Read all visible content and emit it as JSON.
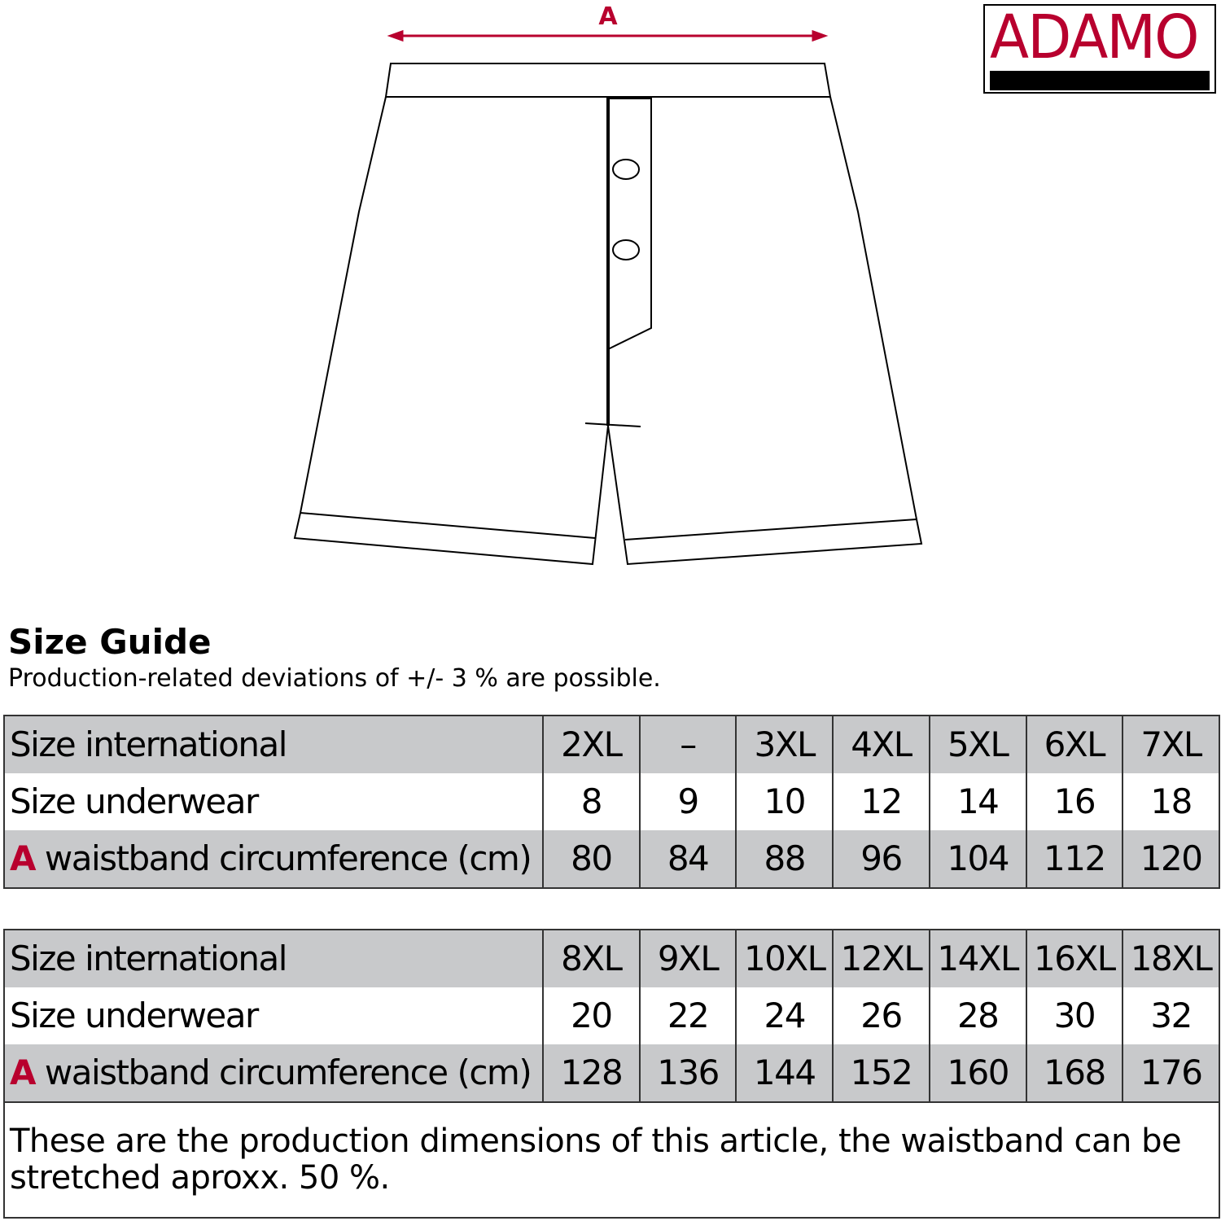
{
  "brand": {
    "logo": "ADAMO",
    "color": "#b8002e"
  },
  "diagram": {
    "measure_label": "A"
  },
  "guide": {
    "title": "Size Guide",
    "subtitle": "Production-related deviations of +/- 3 % are possible."
  },
  "row_labels": {
    "intl": "Size international",
    "underwear": "Size underwear",
    "a": "A",
    "waist": "waistband circumference (cm)"
  },
  "table1": {
    "intl": [
      "2XL",
      "–",
      "3XL",
      "4XL",
      "5XL",
      "6XL",
      "7XL"
    ],
    "underwear": [
      "8",
      "9",
      "10",
      "12",
      "14",
      "16",
      "18"
    ],
    "waist": [
      "80",
      "84",
      "88",
      "96",
      "104",
      "112",
      "120"
    ]
  },
  "table2": {
    "intl": [
      "8XL",
      "9XL",
      "10XL",
      "12XL",
      "14XL",
      "16XL",
      "18XL"
    ],
    "underwear": [
      "20",
      "22",
      "24",
      "26",
      "28",
      "30",
      "32"
    ],
    "waist": [
      "128",
      "136",
      "144",
      "152",
      "160",
      "168",
      "176"
    ]
  },
  "note": "These are the production dimensions of this article, the waistband can be stretched aproxx. 50 %."
}
